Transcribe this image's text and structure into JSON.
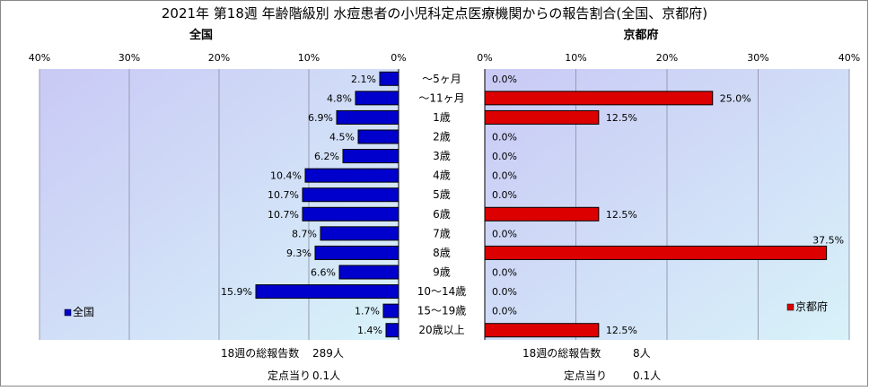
{
  "title": "2021年 第18週 年齢階級別 水痘患者の小児科定点医療機関からの報告割合(全国、京都府)",
  "footer": {
    "left_total_label": "18週の総報告数",
    "left_total_value": "289人",
    "left_per_label": "定点当り",
    "left_per_value": "0.1人",
    "right_total_label": "18週の総報告数",
    "right_total_value": "8人",
    "right_per_label": "定点当り",
    "right_per_value": "0.1人"
  },
  "chart_data": [
    {
      "type": "bar",
      "orientation": "horizontal",
      "title": "全国",
      "direction": "right-to-left",
      "xlim": [
        0,
        40
      ],
      "xticks": [
        "0%",
        "10%",
        "20%",
        "30%",
        "40%"
      ],
      "categories": [
        "～5ヶ月",
        "～11ヶ月",
        "1歳",
        "2歳",
        "3歳",
        "4歳",
        "5歳",
        "6歳",
        "7歳",
        "8歳",
        "9歳",
        "10～14歳",
        "15～19歳",
        "20歳以上"
      ],
      "series": [
        {
          "name": "全国",
          "color": "#0000cc",
          "values": [
            2.1,
            4.8,
            6.9,
            4.5,
            6.2,
            10.4,
            10.7,
            10.7,
            8.7,
            9.3,
            6.6,
            15.9,
            1.7,
            1.4
          ],
          "labels": [
            "2.1%",
            "4.8%",
            "6.9%",
            "4.5%",
            "6.2%",
            "10.4%",
            "10.7%",
            "10.7%",
            "8.7%",
            "9.3%",
            "6.6%",
            "15.9%",
            "1.7%",
            "1.4%"
          ]
        }
      ],
      "legend_position": "bottom-left",
      "grid": true,
      "plot_background": "#cfe6f7"
    },
    {
      "type": "bar",
      "orientation": "horizontal",
      "title": "京都府",
      "direction": "left-to-right",
      "xlim": [
        0,
        40
      ],
      "xticks": [
        "0%",
        "10%",
        "20%",
        "30%",
        "40%"
      ],
      "categories": [
        "～5ヶ月",
        "～11ヶ月",
        "1歳",
        "2歳",
        "3歳",
        "4歳",
        "5歳",
        "6歳",
        "7歳",
        "8歳",
        "9歳",
        "10～14歳",
        "15～19歳",
        "20歳以上"
      ],
      "series": [
        {
          "name": "京都府",
          "color": "#dd0000",
          "values": [
            0.0,
            25.0,
            12.5,
            0.0,
            0.0,
            0.0,
            0.0,
            12.5,
            0.0,
            37.5,
            0.0,
            0.0,
            0.0,
            12.5
          ],
          "labels": [
            "0.0%",
            "25.0%",
            "12.5%",
            "0.0%",
            "0.0%",
            "0.0%",
            "0.0%",
            "12.5%",
            "0.0%",
            "37.5%",
            "0.0%",
            "0.0%",
            "0.0%",
            "12.5%"
          ]
        }
      ],
      "legend_position": "bottom-right",
      "grid": true,
      "plot_background": "#cfe6f7"
    }
  ]
}
